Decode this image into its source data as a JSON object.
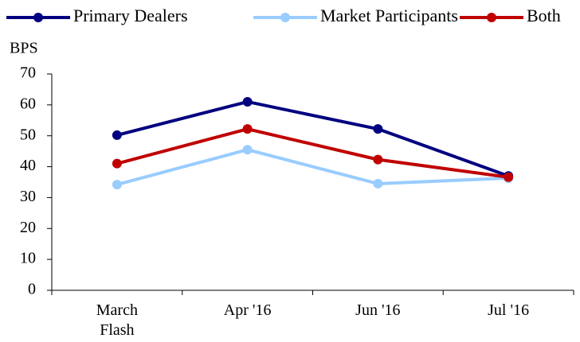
{
  "chart_data": {
    "type": "line",
    "y_label": "BPS",
    "categories": [
      "March Flash",
      "Apr '16",
      "Jun '16",
      "Jul '16"
    ],
    "series": [
      {
        "name": "Primary Dealers",
        "color": "#000080",
        "values": [
          50.2,
          61,
          52.2,
          37
        ]
      },
      {
        "name": "Market Participants",
        "color": "#99ccff",
        "values": [
          34.2,
          45.5,
          34.5,
          36.3
        ]
      },
      {
        "name": "Both",
        "color": "#c00000",
        "values": [
          41,
          52.2,
          42.3,
          36.6
        ]
      }
    ],
    "ylim": [
      0,
      70
    ],
    "yticks": [
      0,
      10,
      20,
      30,
      40,
      50,
      60,
      70
    ],
    "grid": false,
    "legend": "top"
  }
}
